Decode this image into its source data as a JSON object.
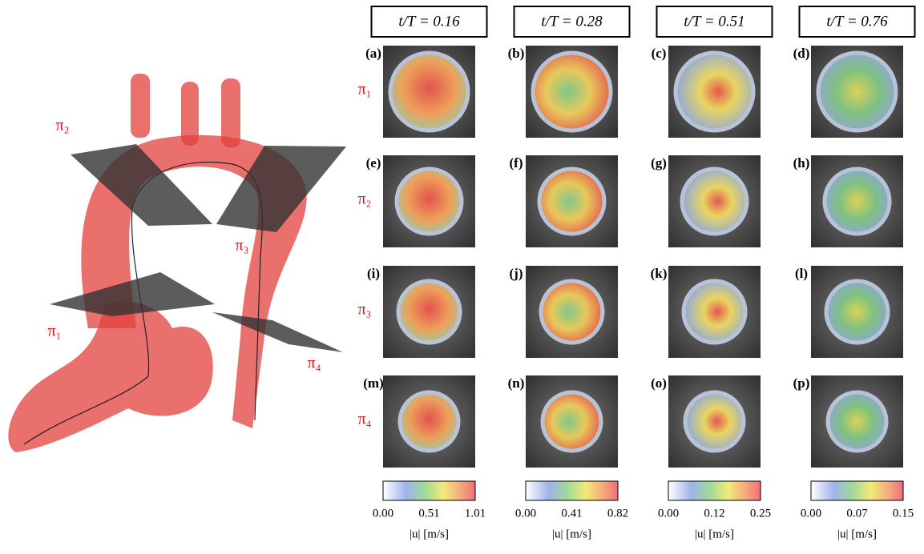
{
  "planes": [
    "π₂",
    "π₃",
    "π₁",
    "π₄"
  ],
  "columns": [
    {
      "header": "t/T = 0.16",
      "colorbar": {
        "ticks": [
          "0.00",
          "0.51",
          "1.01"
        ],
        "label": "|u| [m/s]"
      }
    },
    {
      "header": "t/T = 0.28",
      "colorbar": {
        "ticks": [
          "0.00",
          "0.41",
          "0.82"
        ],
        "label": "|u| [m/s]"
      }
    },
    {
      "header": "t/T = 0.51",
      "colorbar": {
        "ticks": [
          "0.00",
          "0.12",
          "0.25"
        ],
        "label": "|u| [m/s]"
      }
    },
    {
      "header": "t/T = 0.76",
      "colorbar": {
        "ticks": [
          "0.00",
          "0.07",
          "0.15"
        ],
        "label": "|u| [m/s]"
      }
    }
  ],
  "rows": [
    {
      "label": "π₁"
    },
    {
      "label": "π₂"
    },
    {
      "label": "π₃"
    },
    {
      "label": "π₄"
    }
  ],
  "panels": [
    [
      "(a)",
      "(b)",
      "(c)",
      "(d)"
    ],
    [
      "(e)",
      "(f)",
      "(g)",
      "(h)"
    ],
    [
      "(i)",
      "(j)",
      "(k)",
      "(l)"
    ],
    [
      "(m)",
      "(n)",
      "(o)",
      "(p)"
    ]
  ]
}
